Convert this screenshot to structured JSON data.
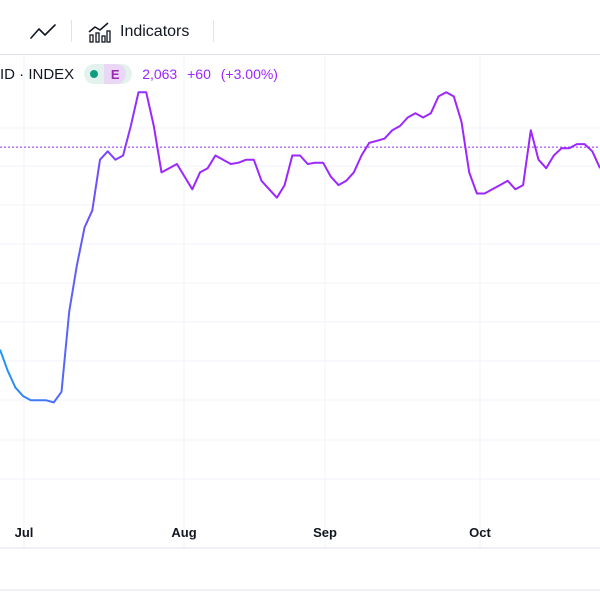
{
  "toolbar": {
    "line_icon": "line-chart-icon",
    "indicators_icon": "indicators-icon",
    "indicators_label": "Indicators"
  },
  "legend": {
    "symbol": "ID · INDEX",
    "exchange_badge": "E",
    "last_value": "2,063",
    "change": "+60",
    "change_percent": "(+3.00%)",
    "status_color": "#0e9e7f",
    "series_color": "#9c27ff"
  },
  "chart_data": {
    "type": "line",
    "x_labels": [
      "Jul",
      "Aug",
      "Sep",
      "Oct"
    ],
    "grid": true,
    "series": [
      {
        "color_start": "#2196f3",
        "color_end": "#9c27ff",
        "relative_level_0_to_1": [
          0.38,
          0.33,
          0.29,
          0.27,
          0.26,
          0.26,
          0.26,
          0.255,
          0.28,
          0.47,
          0.58,
          0.67,
          0.71,
          0.83,
          0.85,
          0.83,
          0.84,
          0.91,
          0.99,
          0.99,
          0.91,
          0.8,
          0.81,
          0.82,
          0.79,
          0.76,
          0.8,
          0.81,
          0.84,
          0.83,
          0.82,
          0.823,
          0.83,
          0.83,
          0.78,
          0.76,
          0.74,
          0.77,
          0.84,
          0.84,
          0.82,
          0.823,
          0.823,
          0.79,
          0.77,
          0.78,
          0.8,
          0.84,
          0.87,
          0.875,
          0.88,
          0.9,
          0.91,
          0.93,
          0.94,
          0.93,
          0.94,
          0.98,
          0.99,
          0.98,
          0.92,
          0.8,
          0.75,
          0.75,
          0.76,
          0.77,
          0.78,
          0.76,
          0.77,
          0.9,
          0.83,
          0.81,
          0.84,
          0.857,
          0.857,
          0.867,
          0.867,
          0.85,
          0.81
        ],
        "reference_line_level": 0.86
      }
    ]
  }
}
